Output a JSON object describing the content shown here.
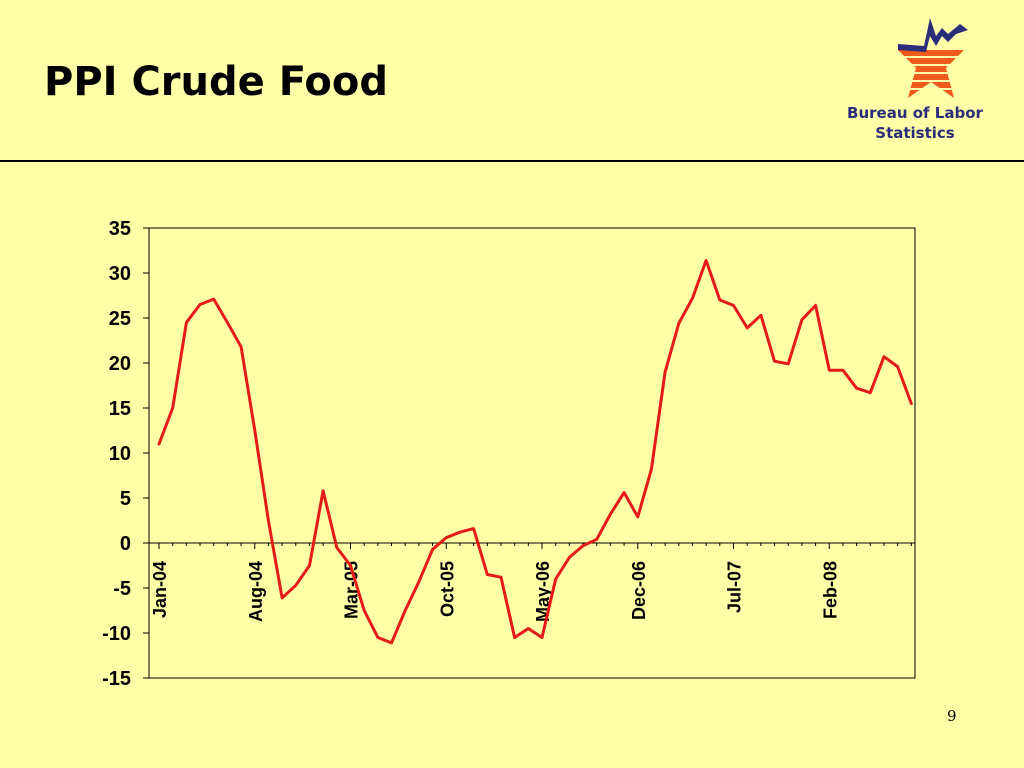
{
  "slide": {
    "title": "PPI Crude Food",
    "org_line1": "Bureau of Labor",
    "org_line2": "Statistics",
    "page_number": "9",
    "logo_icon": "bls-star-logo-icon"
  },
  "colors": {
    "background": "#FFFFA8",
    "series_line": "#E41B17",
    "logo_blue": "#2B2D7A",
    "logo_orange": "#F05A1A"
  },
  "chart_data": {
    "type": "line",
    "title": "",
    "xlabel": "",
    "ylabel": "",
    "ylim": [
      -15,
      35
    ],
    "yticks": [
      35,
      30,
      25,
      20,
      15,
      10,
      5,
      0,
      -5,
      -10,
      -15
    ],
    "x_tick_labels": [
      "Jan-04",
      "Aug-04",
      "Mar-05",
      "Oct-05",
      "May-06",
      "Dec-06",
      "Jul-07",
      "Feb-08"
    ],
    "x_tick_every": 7,
    "grid": false,
    "legend": "none",
    "x_start": "Jan-04",
    "x_frequency": "monthly",
    "series": [
      {
        "values": [
          11,
          15,
          24.5,
          26.5,
          27.1,
          24.5,
          21.8,
          12.5,
          2.5,
          -6.1,
          -4.7,
          -2.5,
          5.8,
          -0.5,
          -2.5,
          -7.5,
          -10.5,
          -11.1,
          -7.5,
          -4.3,
          -0.7,
          0.6,
          1.2,
          1.6,
          -3.5,
          -3.8,
          -10.5,
          -9.5,
          -10.5,
          -4,
          -1.6,
          -0.3,
          0.4,
          3.2,
          5.6,
          2.9,
          8.2,
          19,
          24.4,
          27.2,
          31.4,
          27,
          26.4,
          23.9,
          25.3,
          20.2,
          19.9,
          24.8,
          26.4,
          19.2,
          19.2,
          17.2,
          16.7,
          20.7,
          19.6,
          15.5
        ]
      }
    ]
  }
}
